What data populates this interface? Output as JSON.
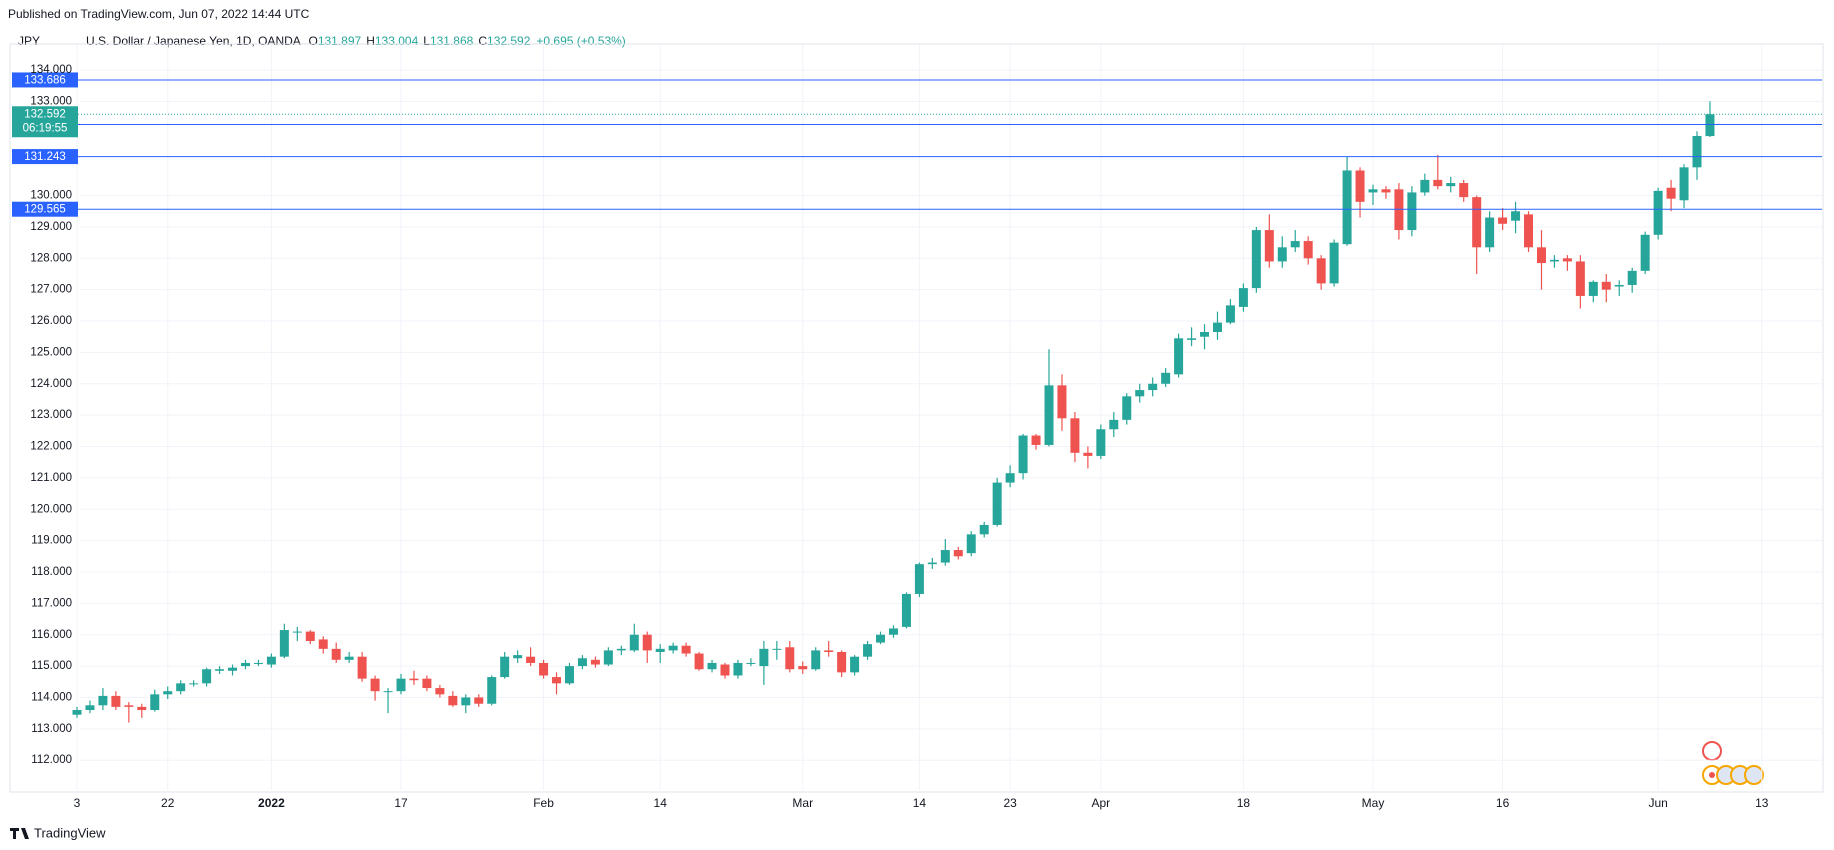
{
  "header": {
    "published": "Published on TradingView.com, Jun 07, 2022 14:44 UTC",
    "symbol": "JPY",
    "description": "U.S. Dollar / Japanese Yen, 1D, OANDA",
    "ohlc": [
      {
        "key": "O",
        "value": 131.897
      },
      {
        "key": "H",
        "value": 133.004
      },
      {
        "key": "L",
        "value": 131.868
      },
      {
        "key": "C",
        "value": 132.592
      }
    ],
    "change": "+0.695 (+0.53%)"
  },
  "footer": {
    "brand": "TradingView"
  },
  "chart_data": {
    "type": "candlestick",
    "up_color": "#26a69a",
    "down_color": "#ef5350",
    "grid": true,
    "categories": [
      "3",
      null,
      null,
      null,
      null,
      null,
      null,
      "22",
      null,
      null,
      null,
      null,
      null,
      null,
      null,
      "2022",
      null,
      null,
      null,
      null,
      null,
      null,
      null,
      null,
      null,
      "17",
      null,
      null,
      null,
      null,
      null,
      null,
      null,
      null,
      null,
      null,
      "Feb",
      null,
      null,
      null,
      null,
      null,
      null,
      null,
      null,
      "14",
      null,
      null,
      null,
      null,
      null,
      null,
      null,
      null,
      null,
      null,
      "Mar",
      null,
      null,
      null,
      null,
      null,
      null,
      null,
      null,
      "14",
      null,
      null,
      null,
      null,
      null,
      null,
      "23",
      null,
      null,
      null,
      null,
      null,
      null,
      "Apr",
      null,
      null,
      null,
      null,
      null,
      null,
      null,
      null,
      null,
      null,
      "18",
      null,
      null,
      null,
      null,
      null,
      null,
      null,
      null,
      null,
      "May",
      null,
      null,
      null,
      null,
      null,
      null,
      null,
      null,
      null,
      "16",
      null,
      null,
      null,
      null,
      null,
      null,
      null,
      null,
      null,
      null,
      null,
      "Jun",
      null,
      null,
      null,
      null,
      null,
      null,
      null,
      "13"
    ],
    "open": [
      113.45,
      113.6,
      113.75,
      114.05,
      113.75,
      113.7,
      113.6,
      114.1,
      114.2,
      114.45,
      114.45,
      114.85,
      114.85,
      115.0,
      115.1,
      115.05,
      115.3,
      116.1,
      116.1,
      115.85,
      115.55,
      115.2,
      115.3,
      114.6,
      114.2,
      114.2,
      114.6,
      114.6,
      114.3,
      114.05,
      113.75,
      114.0,
      113.8,
      114.65,
      115.25,
      115.3,
      115.1,
      114.65,
      114.45,
      115.0,
      115.2,
      115.05,
      115.5,
      115.5,
      116.0,
      115.45,
      115.5,
      115.65,
      115.4,
      114.9,
      115.05,
      114.7,
      115.1,
      115.0,
      115.55,
      115.6,
      115.0,
      114.9,
      115.5,
      115.45,
      114.8,
      115.3,
      115.75,
      116.0,
      116.25,
      117.3,
      118.25,
      118.3,
      118.7,
      118.6,
      119.2,
      119.5,
      120.85,
      121.15,
      122.35,
      122.05,
      123.95,
      122.9,
      121.8,
      121.7,
      122.55,
      122.85,
      123.6,
      123.8,
      124.0,
      124.3,
      125.4,
      125.5,
      125.65,
      125.95,
      126.45,
      127.05,
      128.9,
      127.9,
      128.35,
      128.55,
      128.0,
      127.2,
      128.45,
      130.8,
      130.1,
      130.2,
      130.2,
      128.9,
      130.1,
      130.5,
      130.3,
      130.4,
      129.95,
      128.35,
      129.3,
      129.2,
      129.4,
      128.35,
      127.9,
      128.0,
      127.9,
      126.8,
      127.25,
      127.1,
      127.15,
      127.6,
      128.75,
      130.25,
      129.85,
      130.9,
      131.897,
      null,
      null,
      null,
      null
    ],
    "high": [
      113.7,
      113.9,
      114.3,
      114.2,
      113.85,
      113.8,
      114.25,
      114.35,
      114.55,
      114.55,
      114.95,
      115.0,
      115.05,
      115.2,
      115.2,
      115.4,
      116.35,
      116.25,
      116.15,
      115.95,
      115.75,
      115.45,
      115.45,
      114.7,
      114.3,
      114.75,
      114.85,
      114.7,
      114.4,
      114.2,
      114.1,
      114.1,
      114.7,
      115.45,
      115.5,
      115.6,
      115.2,
      114.8,
      115.1,
      115.35,
      115.3,
      115.6,
      115.65,
      116.35,
      116.1,
      115.7,
      115.75,
      115.75,
      115.45,
      115.2,
      115.1,
      115.2,
      115.25,
      115.8,
      115.8,
      115.8,
      115.15,
      115.6,
      115.8,
      115.5,
      115.35,
      115.8,
      116.1,
      116.3,
      117.35,
      118.3,
      118.45,
      119.05,
      118.8,
      119.3,
      119.6,
      121.0,
      121.4,
      122.4,
      122.4,
      125.1,
      124.3,
      123.1,
      122.0,
      122.7,
      123.1,
      123.7,
      124.0,
      124.2,
      124.5,
      125.6,
      125.8,
      125.9,
      126.3,
      126.7,
      127.2,
      129.0,
      129.4,
      128.7,
      128.9,
      128.7,
      128.1,
      128.6,
      131.25,
      130.9,
      130.35,
      130.3,
      130.4,
      130.3,
      130.7,
      131.3,
      130.6,
      130.5,
      130.0,
      129.5,
      129.6,
      129.8,
      129.5,
      128.9,
      128.1,
      128.1,
      128.1,
      127.3,
      127.5,
      127.3,
      127.7,
      128.85,
      130.25,
      130.5,
      131.0,
      132.05,
      133.004,
      null,
      null,
      null,
      null
    ],
    "low": [
      113.35,
      113.5,
      113.6,
      113.6,
      113.2,
      113.35,
      113.55,
      113.95,
      114.1,
      114.35,
      114.35,
      114.75,
      114.7,
      114.9,
      115.0,
      114.95,
      115.25,
      115.8,
      115.7,
      115.4,
      115.1,
      115.1,
      114.5,
      113.9,
      113.5,
      114.1,
      114.4,
      114.2,
      114.0,
      113.7,
      113.5,
      113.7,
      113.75,
      114.6,
      115.1,
      115.0,
      114.6,
      114.1,
      114.4,
      114.9,
      114.95,
      115.0,
      115.35,
      115.45,
      115.1,
      115.1,
      115.4,
      115.3,
      114.85,
      114.8,
      114.6,
      114.6,
      115.0,
      114.4,
      115.2,
      114.8,
      114.75,
      114.85,
      115.3,
      114.65,
      114.7,
      115.2,
      115.7,
      115.9,
      116.2,
      117.2,
      118.1,
      118.2,
      118.4,
      118.5,
      119.1,
      119.45,
      120.7,
      120.95,
      121.9,
      122.0,
      122.5,
      121.5,
      121.3,
      121.6,
      122.3,
      122.7,
      123.4,
      123.6,
      123.9,
      124.2,
      125.2,
      125.1,
      125.4,
      125.9,
      126.3,
      126.9,
      127.7,
      127.7,
      128.2,
      127.8,
      127.0,
      127.1,
      128.4,
      129.3,
      129.7,
      129.9,
      128.6,
      128.7,
      130.0,
      130.2,
      130.1,
      129.8,
      127.5,
      128.2,
      128.9,
      128.8,
      128.2,
      127.0,
      127.7,
      127.6,
      126.4,
      126.6,
      126.6,
      126.8,
      126.9,
      127.5,
      128.6,
      129.5,
      129.6,
      130.5,
      131.868,
      null,
      null,
      null,
      null
    ],
    "close": [
      113.6,
      113.75,
      114.05,
      113.7,
      113.7,
      113.6,
      114.1,
      114.2,
      114.45,
      114.45,
      114.9,
      114.9,
      114.95,
      115.1,
      115.1,
      115.3,
      116.15,
      116.1,
      115.8,
      115.55,
      115.2,
      115.3,
      114.6,
      114.2,
      114.2,
      114.6,
      114.55,
      114.3,
      114.1,
      113.75,
      114.0,
      113.8,
      114.65,
      115.3,
      115.35,
      115.1,
      114.7,
      114.45,
      115.0,
      115.25,
      115.05,
      115.5,
      115.55,
      116.0,
      115.5,
      115.55,
      115.65,
      115.4,
      114.9,
      115.1,
      114.7,
      115.1,
      115.1,
      115.55,
      115.55,
      114.9,
      114.9,
      115.5,
      115.45,
      114.8,
      115.3,
      115.7,
      116.0,
      116.2,
      117.3,
      118.25,
      118.3,
      118.7,
      118.5,
      119.2,
      119.5,
      120.85,
      121.15,
      122.35,
      122.05,
      123.95,
      122.9,
      121.8,
      121.7,
      122.55,
      122.85,
      123.6,
      123.8,
      124.0,
      124.35,
      125.45,
      125.45,
      125.65,
      125.95,
      126.5,
      127.05,
      128.9,
      127.9,
      128.35,
      128.55,
      128.0,
      127.2,
      128.5,
      130.8,
      129.8,
      130.2,
      130.1,
      128.9,
      130.1,
      130.5,
      130.3,
      130.4,
      129.95,
      128.35,
      129.3,
      129.1,
      129.5,
      128.35,
      127.85,
      127.95,
      127.9,
      126.8,
      127.25,
      127.0,
      127.15,
      127.6,
      128.75,
      130.15,
      129.9,
      130.9,
      131.9,
      132.592,
      null,
      null,
      null,
      null
    ],
    "ylim": [
      111.05,
      134.8
    ],
    "yticks": [
      {
        "value": 112,
        "label": "112.000"
      },
      {
        "value": 113,
        "label": "113.000"
      },
      {
        "value": 114,
        "label": "114.000"
      },
      {
        "value": 115,
        "label": "115.000"
      },
      {
        "value": 116,
        "label": "116.000"
      },
      {
        "value": 117,
        "label": "117.000"
      },
      {
        "value": 118,
        "label": "118.000"
      },
      {
        "value": 119,
        "label": "119.000"
      },
      {
        "value": 120,
        "label": "120.000"
      },
      {
        "value": 121,
        "label": "121.000"
      },
      {
        "value": 122,
        "label": "122.000"
      },
      {
        "value": 123,
        "label": "123.000"
      },
      {
        "value": 124,
        "label": "124.000"
      },
      {
        "value": 125,
        "label": "125.000"
      },
      {
        "value": 126,
        "label": "126.000"
      },
      {
        "value": 127,
        "label": "127.000"
      },
      {
        "value": 128,
        "label": "128.000"
      },
      {
        "value": 129,
        "label": "129.000"
      },
      {
        "value": 130,
        "label": "130.000"
      },
      {
        "value": 133,
        "label": "133.000"
      },
      {
        "value": 134,
        "label": "134.000"
      }
    ],
    "price_lines": [
      133.686,
      132.265,
      131.243,
      129.565
    ],
    "price_line_color": "#2962ff",
    "last_price": {
      "value": 132.592,
      "countdown": "06:19:55"
    }
  }
}
